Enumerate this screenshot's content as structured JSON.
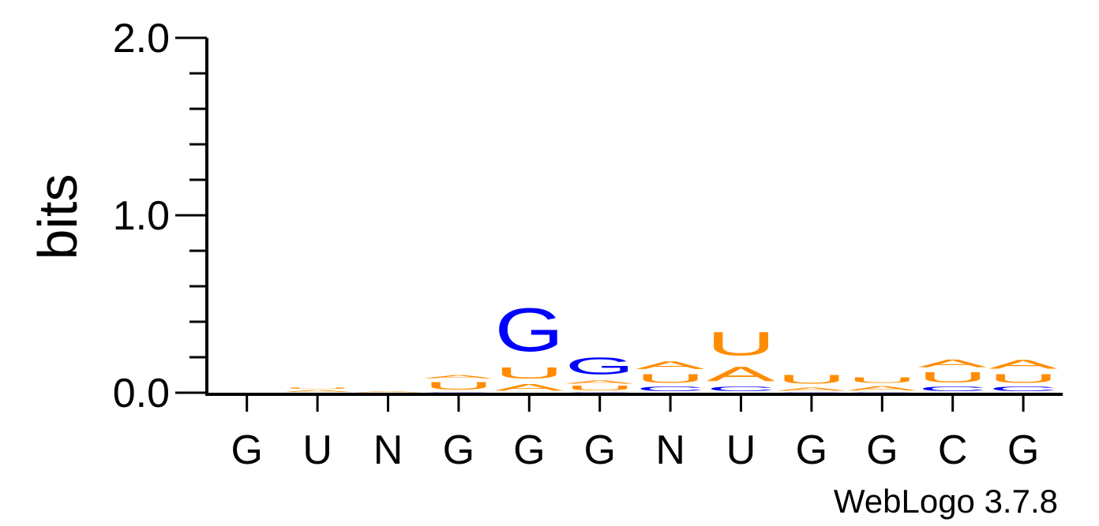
{
  "chart_data": {
    "type": "sequence-logo",
    "title": "",
    "ylabel": "bits",
    "ylim": [
      0,
      2
    ],
    "yticks": [
      "0.0",
      "1.0",
      "2.0"
    ],
    "positions": [
      "G",
      "U",
      "N",
      "G",
      "G",
      "G",
      "N",
      "U",
      "G",
      "G",
      "C",
      "G"
    ],
    "credit": "WebLogo 3.7.8",
    "colors": {
      "A": "#ff8c00",
      "U": "#ff8c00",
      "G": "#0000ff",
      "C": "#0000ff"
    },
    "stacks": [
      [],
      [
        {
          "letter": "A",
          "bits": 0.02
        },
        {
          "letter": "U",
          "bits": 0.01
        }
      ],
      [
        {
          "letter": "A",
          "bits": 0.01
        }
      ],
      [
        {
          "letter": "G",
          "bits": 0.005
        },
        {
          "letter": "U",
          "bits": 0.07
        },
        {
          "letter": "A",
          "bits": 0.03
        }
      ],
      [
        {
          "letter": "A",
          "bits": 0.06
        },
        {
          "letter": "U",
          "bits": 0.1
        },
        {
          "letter": "G",
          "bits": 0.39
        }
      ],
      [
        {
          "letter": "C",
          "bits": 0.005
        },
        {
          "letter": "U",
          "bits": 0.04
        },
        {
          "letter": "A",
          "bits": 0.03
        },
        {
          "letter": "G",
          "bits": 0.15
        }
      ],
      [
        {
          "letter": "C",
          "bits": 0.04
        },
        {
          "letter": "U",
          "bits": 0.08
        },
        {
          "letter": "A",
          "bits": 0.07
        }
      ],
      [
        {
          "letter": "C",
          "bits": 0.04
        },
        {
          "letter": "A",
          "bits": 0.13
        },
        {
          "letter": "U",
          "bits": 0.21
        }
      ],
      [
        {
          "letter": "C",
          "bits": 0.005
        },
        {
          "letter": "A",
          "bits": 0.03
        },
        {
          "letter": "U",
          "bits": 0.08
        }
      ],
      [
        {
          "letter": "C",
          "bits": 0.005
        },
        {
          "letter": "A",
          "bits": 0.04
        },
        {
          "letter": "U",
          "bits": 0.05
        }
      ],
      [
        {
          "letter": "C",
          "bits": 0.04
        },
        {
          "letter": "U",
          "bits": 0.09
        },
        {
          "letter": "A",
          "bits": 0.07
        }
      ],
      [
        {
          "letter": "C",
          "bits": 0.04
        },
        {
          "letter": "U",
          "bits": 0.08
        },
        {
          "letter": "A",
          "bits": 0.08
        }
      ]
    ]
  }
}
